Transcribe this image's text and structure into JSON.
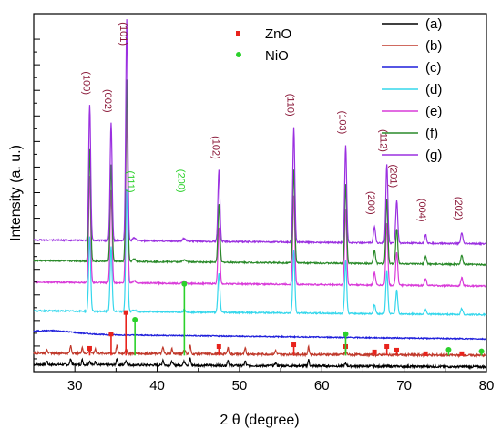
{
  "chart_data": {
    "type": "line",
    "xlabel": "2 θ (degree)",
    "ylabel": "Intensity (a. u.)",
    "xlim": [
      25,
      80
    ],
    "x_ticks": [
      "30",
      "40",
      "50",
      "60",
      "70",
      "80"
    ],
    "legend_position": "top-right",
    "series": [
      {
        "name": "(a)",
        "color": "#000000",
        "kind": "mixed_a",
        "offset": 0.02
      },
      {
        "name": "(b)",
        "color": "#c0392b",
        "kind": "mixed_b",
        "offset": 0.052
      },
      {
        "name": "(c)",
        "color": "#1f1fdb",
        "kind": "amorphous",
        "offset": 0.105
      },
      {
        "name": "(d)",
        "color": "#35d7ec",
        "kind": "zno",
        "offset": 0.17,
        "scale": 0.55
      },
      {
        "name": "(e)",
        "color": "#d93bd9",
        "kind": "zno",
        "offset": 0.25,
        "scale": 0.78
      },
      {
        "name": "(f)",
        "color": "#2a8a2a",
        "kind": "zno",
        "offset": 0.31,
        "scale": 0.82
      },
      {
        "name": "(g)",
        "color": "#9b30e0",
        "kind": "zno",
        "offset": 0.368,
        "scale": 1.0
      }
    ],
    "zno_peaks": [
      {
        "hkl": "(100)",
        "x": 31.8,
        "h": 0.38
      },
      {
        "hkl": "(002)",
        "x": 34.4,
        "h": 0.33
      },
      {
        "hkl": "(101)",
        "x": 36.3,
        "h": 0.62
      },
      {
        "hkl": "(102)",
        "x": 47.5,
        "h": 0.2
      },
      {
        "hkl": "(110)",
        "x": 56.6,
        "h": 0.32
      },
      {
        "hkl": "(103)",
        "x": 62.9,
        "h": 0.27
      },
      {
        "hkl": "(200)",
        "x": 66.4,
        "h": 0.045
      },
      {
        "hkl": "(112)",
        "x": 67.9,
        "h": 0.22
      },
      {
        "hkl": "(201)",
        "x": 69.1,
        "h": 0.12
      },
      {
        "hkl": "(004)",
        "x": 72.6,
        "h": 0.025
      },
      {
        "hkl": "(202)",
        "x": 77.0,
        "h": 0.03
      }
    ],
    "nio_peaks": [
      {
        "hkl": "(111)",
        "x": 37.2
      },
      {
        "hkl": "(200)",
        "x": 43.3
      }
    ],
    "reference_markers": {
      "ZnO": {
        "label": "ZnO",
        "color": "#e8231c",
        "marker": "square",
        "lines": [
          {
            "x": 31.8,
            "h": 0.02
          },
          {
            "x": 34.4,
            "h": 0.06
          },
          {
            "x": 36.2,
            "h": 0.12
          },
          {
            "x": 47.5,
            "h": 0.025
          },
          {
            "x": 56.6,
            "h": 0.03
          },
          {
            "x": 62.9,
            "h": 0.025
          },
          {
            "x": 66.4,
            "h": 0.01
          },
          {
            "x": 67.9,
            "h": 0.025
          },
          {
            "x": 69.1,
            "h": 0.015
          },
          {
            "x": 72.6,
            "h": 0.005
          },
          {
            "x": 77.0,
            "h": 0.005
          }
        ]
      },
      "NiO": {
        "label": "NiO",
        "color": "#2bd12b",
        "marker": "circle",
        "lines": [
          {
            "x": 37.3,
            "h": 0.1
          },
          {
            "x": 43.3,
            "h": 0.2
          },
          {
            "x": 62.9,
            "h": 0.06
          },
          {
            "x": 75.4,
            "h": 0.016
          },
          {
            "x": 79.4,
            "h": 0.012
          }
        ]
      }
    }
  }
}
